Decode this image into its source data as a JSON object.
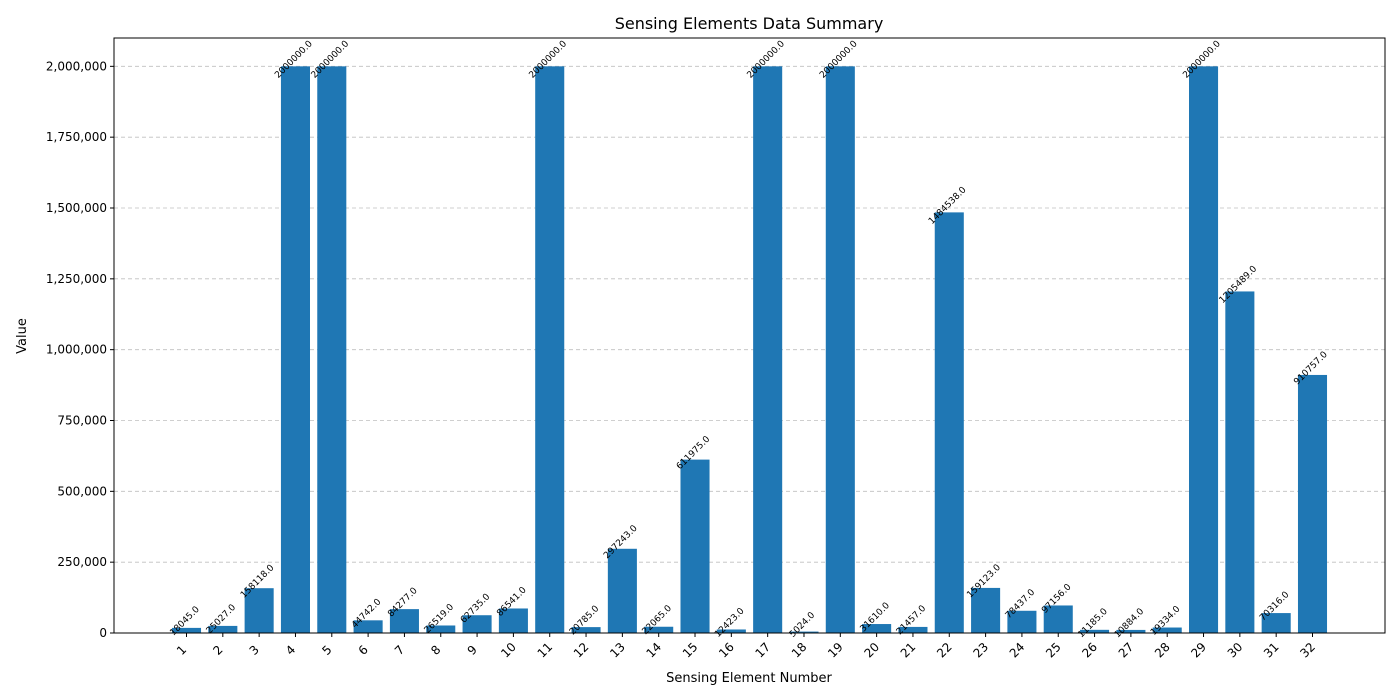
{
  "chart_data": {
    "type": "bar",
    "title": "Sensing Elements Data Summary",
    "xlabel": "Sensing Element Number",
    "ylabel": "Value",
    "ylim": [
      0,
      2100000
    ],
    "yticks": [
      0,
      250000,
      500000,
      750000,
      1000000,
      1250000,
      1500000,
      1750000,
      2000000
    ],
    "ytick_labels": [
      "0",
      "250,000",
      "500,000",
      "750,000",
      "1,000,000",
      "1,250,000",
      "1,500,000",
      "1,750,000",
      "2,000,000"
    ],
    "grid": "y-dashed",
    "bar_color": "#1f77b4",
    "categories": [
      "1",
      "2",
      "3",
      "4",
      "5",
      "6",
      "7",
      "8",
      "9",
      "10",
      "11",
      "12",
      "13",
      "14",
      "15",
      "16",
      "17",
      "18",
      "19",
      "20",
      "21",
      "22",
      "23",
      "24",
      "25",
      "26",
      "27",
      "28",
      "29",
      "30",
      "31",
      "32"
    ],
    "values": [
      18045,
      25027,
      158118,
      2000000,
      2000000,
      44742,
      84277,
      26519,
      62735,
      86541,
      2000000,
      20785,
      297243,
      22065,
      611975,
      12423,
      2000000,
      5024,
      2000000,
      31610,
      21457,
      1484538,
      159123,
      78437,
      97156,
      11185,
      10884,
      19334,
      2000000,
      1205489,
      70316,
      910757
    ],
    "data_labels": [
      "18045.0",
      "25027.0",
      "158118.0",
      "2000000.0",
      "2000000.0",
      "44742.0",
      "84277.0",
      "26519.0",
      "62735.0",
      "86541.0",
      "2000000.0",
      "20785.0",
      "297243.0",
      "22065.0",
      "611975.0",
      "12423.0",
      "2000000.0",
      "5024.0",
      "2000000.0",
      "31610.0",
      "21457.0",
      "1484538.0",
      "159123.0",
      "78437.0",
      "97156.0",
      "11185.0",
      "10884.0",
      "19334.0",
      "2000000.0",
      "1205489.0",
      "70316.0",
      "910757.0"
    ]
  }
}
